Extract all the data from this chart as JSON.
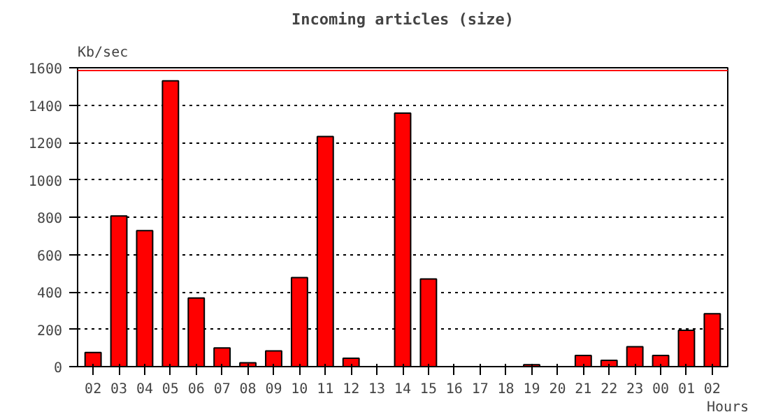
{
  "chart_data": {
    "type": "bar",
    "title": "Incoming articles (size)",
    "ylabel": "Kb/sec",
    "xlabel": "Hours",
    "categories": [
      "02",
      "03",
      "04",
      "05",
      "06",
      "07",
      "08",
      "09",
      "10",
      "11",
      "12",
      "13",
      "14",
      "15",
      "16",
      "17",
      "18",
      "19",
      "20",
      "21",
      "22",
      "23",
      "00",
      "01",
      "02"
    ],
    "series": [
      {
        "color": "#ff0000",
        "values": [
          76,
          807,
          728,
          1530,
          367,
          100,
          21,
          84,
          477,
          1232,
          45,
          0,
          1357,
          469,
          0,
          0,
          0,
          10,
          0,
          60,
          34,
          107,
          60,
          194,
          283
        ]
      }
    ],
    "ylim": [
      0,
      1600
    ],
    "yticks": [
      0,
      200,
      400,
      600,
      800,
      1000,
      1200,
      1400,
      1600
    ],
    "grid": "y",
    "ref_lines": [
      {
        "axis": "y",
        "value": 1585,
        "color": "#ff0000"
      }
    ]
  }
}
